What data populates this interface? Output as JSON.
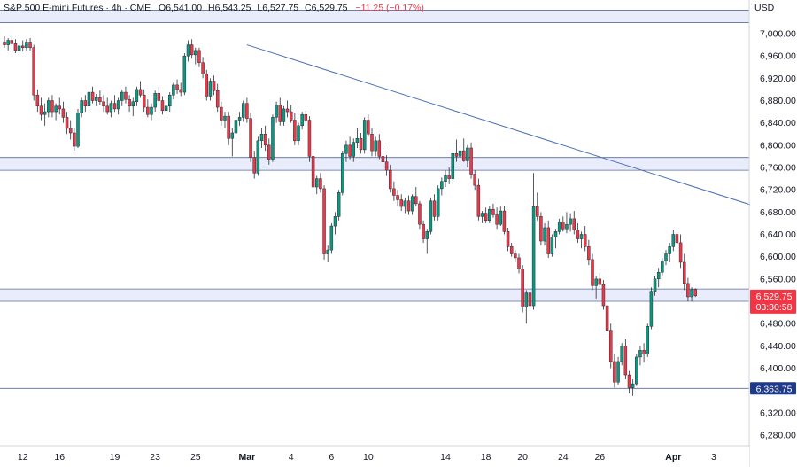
{
  "header": {
    "symbol": "S&P 500 E-mini Futures · 4h · CME",
    "open_label": "O",
    "open": "6,541.00",
    "high_label": "H",
    "high": "6,543.25",
    "low_label": "L",
    "low": "6,527.75",
    "close_label": "C",
    "close": "6,529.75",
    "change": "−11.25 (−0.17%)",
    "currency": "USD"
  },
  "colors": {
    "up": "#089981",
    "down": "#f23645",
    "band_fill": "#e8ecfb",
    "band_line": "#5b6aa0",
    "trendline": "#4a6fb5",
    "price_badge": "#f23645",
    "level_badge": "#1e3a8a"
  },
  "chart_data": {
    "type": "candlestick",
    "ylim": [
      6260,
      7020
    ],
    "y_ticks": [
      "7,000.00",
      "6,960.00",
      "6,920.00",
      "6,880.00",
      "6,840.00",
      "6,800.00",
      "6,760.00",
      "6,720.00",
      "6,680.00",
      "6,640.00",
      "6,600.00",
      "6,560.00",
      "6,520.00",
      "6,480.00",
      "6,440.00",
      "6,400.00",
      "6,360.00",
      "6,320.00",
      "6,280.00"
    ],
    "y_tick_values": [
      7000,
      6960,
      6920,
      6880,
      6840,
      6800,
      6760,
      6720,
      6680,
      6640,
      6600,
      6560,
      6520,
      6480,
      6440,
      6400,
      6360,
      6320,
      6280
    ],
    "x_labels": [
      "12",
      "16",
      "19",
      "23",
      "25",
      "Mar",
      "4",
      "6",
      "10",
      "14",
      "18",
      "20",
      "24",
      "26",
      "Apr",
      "3"
    ],
    "x_label_bars": [
      5,
      15,
      30,
      41,
      52,
      66,
      78,
      89,
      99,
      120,
      131,
      141,
      152,
      162,
      182,
      193
    ],
    "bold_x_labels": [
      "Mar",
      "Apr"
    ],
    "bars": [
      [
        6985,
        6995,
        6975,
        6980
      ],
      [
        6980,
        6992,
        6970,
        6988
      ],
      [
        6988,
        6996,
        6978,
        6982
      ],
      [
        6982,
        6990,
        6965,
        6970
      ],
      [
        6970,
        6985,
        6960,
        6978
      ],
      [
        6978,
        6988,
        6968,
        6975
      ],
      [
        6975,
        6990,
        6970,
        6985
      ],
      [
        6985,
        6992,
        6970,
        6975
      ],
      [
        6975,
        6980,
        6880,
        6890
      ],
      [
        6890,
        6900,
        6860,
        6870
      ],
      [
        6870,
        6885,
        6845,
        6855
      ],
      [
        6855,
        6875,
        6835,
        6860
      ],
      [
        6860,
        6885,
        6850,
        6880
      ],
      [
        6880,
        6890,
        6850,
        6860
      ],
      [
        6860,
        6875,
        6845,
        6870
      ],
      [
        6870,
        6885,
        6855,
        6865
      ],
      [
        6865,
        6878,
        6840,
        6850
      ],
      [
        6850,
        6860,
        6820,
        6830
      ],
      [
        6830,
        6845,
        6810,
        6822
      ],
      [
        6822,
        6830,
        6790,
        6798
      ],
      [
        6798,
        6865,
        6795,
        6858
      ],
      [
        6858,
        6885,
        6850,
        6880
      ],
      [
        6880,
        6890,
        6860,
        6870
      ],
      [
        6870,
        6900,
        6862,
        6895
      ],
      [
        6895,
        6905,
        6875,
        6880
      ],
      [
        6880,
        6892,
        6870,
        6885
      ],
      [
        6885,
        6898,
        6872,
        6878
      ],
      [
        6878,
        6890,
        6860,
        6870
      ],
      [
        6870,
        6885,
        6855,
        6860
      ],
      [
        6860,
        6880,
        6850,
        6875
      ],
      [
        6875,
        6890,
        6860,
        6865
      ],
      [
        6865,
        6885,
        6855,
        6880
      ],
      [
        6880,
        6900,
        6870,
        6895
      ],
      [
        6895,
        6905,
        6875,
        6882
      ],
      [
        6882,
        6890,
        6860,
        6870
      ],
      [
        6870,
        6885,
        6852,
        6878
      ],
      [
        6878,
        6905,
        6870,
        6900
      ],
      [
        6900,
        6915,
        6885,
        6890
      ],
      [
        6890,
        6900,
        6860,
        6868
      ],
      [
        6868,
        6882,
        6850,
        6855
      ],
      [
        6855,
        6875,
        6845,
        6868
      ],
      [
        6868,
        6898,
        6860,
        6893
      ],
      [
        6893,
        6905,
        6875,
        6880
      ],
      [
        6880,
        6888,
        6855,
        6862
      ],
      [
        6862,
        6875,
        6848,
        6870
      ],
      [
        6870,
        6895,
        6860,
        6890
      ],
      [
        6890,
        6912,
        6882,
        6908
      ],
      [
        6908,
        6918,
        6892,
        6900
      ],
      [
        6900,
        6912,
        6888,
        6895
      ],
      [
        6895,
        6965,
        6890,
        6960
      ],
      [
        6960,
        6988,
        6950,
        6980
      ],
      [
        6980,
        6990,
        6955,
        6962
      ],
      [
        6962,
        6975,
        6945,
        6970
      ],
      [
        6970,
        6975,
        6940,
        6948
      ],
      [
        6948,
        6958,
        6920,
        6928
      ],
      [
        6928,
        6935,
        6880,
        6888
      ],
      [
        6888,
        6920,
        6880,
        6915
      ],
      [
        6915,
        6925,
        6890,
        6898
      ],
      [
        6898,
        6910,
        6860,
        6868
      ],
      [
        6868,
        6878,
        6835,
        6845
      ],
      [
        6845,
        6860,
        6830,
        6852
      ],
      [
        6852,
        6860,
        6800,
        6812
      ],
      [
        6812,
        6830,
        6780,
        6822
      ],
      [
        6822,
        6850,
        6810,
        6845
      ],
      [
        6845,
        6860,
        6835,
        6850
      ],
      [
        6850,
        6880,
        6842,
        6875
      ],
      [
        6875,
        6885,
        6840,
        6848
      ],
      [
        6848,
        6858,
        6770,
        6778
      ],
      [
        6778,
        6790,
        6740,
        6750
      ],
      [
        6750,
        6815,
        6745,
        6808
      ],
      [
        6808,
        6830,
        6795,
        6820
      ],
      [
        6820,
        6835,
        6790,
        6800
      ],
      [
        6800,
        6812,
        6765,
        6775
      ],
      [
        6775,
        6855,
        6770,
        6850
      ],
      [
        6850,
        6878,
        6840,
        6872
      ],
      [
        6872,
        6885,
        6835,
        6842
      ],
      [
        6842,
        6870,
        6835,
        6865
      ],
      [
        6865,
        6880,
        6850,
        6860
      ],
      [
        6860,
        6872,
        6840,
        6845
      ],
      [
        6845,
        6858,
        6800,
        6808
      ],
      [
        6808,
        6840,
        6800,
        6835
      ],
      [
        6835,
        6860,
        6828,
        6855
      ],
      [
        6855,
        6862,
        6840,
        6845
      ],
      [
        6845,
        6852,
        6770,
        6780
      ],
      [
        6780,
        6790,
        6715,
        6725
      ],
      [
        6725,
        6745,
        6712,
        6740
      ],
      [
        6740,
        6750,
        6715,
        6722
      ],
      [
        6722,
        6728,
        6595,
        6605
      ],
      [
        6605,
        6620,
        6590,
        6612
      ],
      [
        6612,
        6660,
        6605,
        6655
      ],
      [
        6655,
        6680,
        6640,
        6672
      ],
      [
        6672,
        6720,
        6665,
        6715
      ],
      [
        6715,
        6790,
        6710,
        6785
      ],
      [
        6785,
        6808,
        6770,
        6800
      ],
      [
        6800,
        6815,
        6775,
        6780
      ],
      [
        6780,
        6812,
        6770,
        6805
      ],
      [
        6805,
        6830,
        6795,
        6812
      ],
      [
        6812,
        6822,
        6785,
        6792
      ],
      [
        6792,
        6850,
        6785,
        6845
      ],
      [
        6845,
        6855,
        6815,
        6820
      ],
      [
        6820,
        6830,
        6780,
        6790
      ],
      [
        6790,
        6815,
        6780,
        6808
      ],
      [
        6808,
        6820,
        6775,
        6780
      ],
      [
        6780,
        6795,
        6762,
        6770
      ],
      [
        6770,
        6782,
        6745,
        6755
      ],
      [
        6755,
        6765,
        6715,
        6722
      ],
      [
        6722,
        6735,
        6700,
        6710
      ],
      [
        6710,
        6720,
        6690,
        6702
      ],
      [
        6702,
        6712,
        6682,
        6690
      ],
      [
        6690,
        6705,
        6678,
        6700
      ],
      [
        6700,
        6710,
        6675,
        6682
      ],
      [
        6682,
        6712,
        6675,
        6708
      ],
      [
        6708,
        6725,
        6690,
        6695
      ],
      [
        6695,
        6700,
        6650,
        6658
      ],
      [
        6658,
        6665,
        6625,
        6632
      ],
      [
        6632,
        6650,
        6605,
        6645
      ],
      [
        6645,
        6705,
        6640,
        6700
      ],
      [
        6700,
        6712,
        6665,
        6672
      ],
      [
        6672,
        6728,
        6665,
        6722
      ],
      [
        6722,
        6742,
        6710,
        6735
      ],
      [
        6735,
        6755,
        6725,
        6745
      ],
      [
        6745,
        6760,
        6730,
        6740
      ],
      [
        6740,
        6790,
        6735,
        6785
      ],
      [
        6785,
        6810,
        6770,
        6780
      ],
      [
        6780,
        6798,
        6765,
        6790
      ],
      [
        6790,
        6812,
        6770,
        6772
      ],
      [
        6772,
        6800,
        6760,
        6795
      ],
      [
        6795,
        6805,
        6740,
        6748
      ],
      [
        6748,
        6755,
        6720,
        6728
      ],
      [
        6728,
        6740,
        6665,
        6672
      ],
      [
        6672,
        6682,
        6660,
        6678
      ],
      [
        6678,
        6688,
        6660,
        6665
      ],
      [
        6665,
        6690,
        6660,
        6685
      ],
      [
        6685,
        6695,
        6670,
        6675
      ],
      [
        6675,
        6688,
        6650,
        6658
      ],
      [
        6658,
        6690,
        6655,
        6682
      ],
      [
        6682,
        6690,
        6640,
        6645
      ],
      [
        6645,
        6652,
        6610,
        6618
      ],
      [
        6618,
        6625,
        6600,
        6605
      ],
      [
        6605,
        6612,
        6590,
        6598
      ],
      [
        6598,
        6605,
        6570,
        6578
      ],
      [
        6578,
        6585,
        6500,
        6510
      ],
      [
        6510,
        6540,
        6480,
        6535
      ],
      [
        6535,
        6548,
        6505,
        6512
      ],
      [
        6512,
        6750,
        6505,
        6690
      ],
      [
        6690,
        6715,
        6665,
        6672
      ],
      [
        6672,
        6680,
        6620,
        6628
      ],
      [
        6628,
        6660,
        6620,
        6652
      ],
      [
        6652,
        6665,
        6598,
        6605
      ],
      [
        6605,
        6640,
        6600,
        6635
      ],
      [
        6635,
        6650,
        6615,
        6645
      ],
      [
        6645,
        6668,
        6640,
        6662
      ],
      [
        6662,
        6672,
        6645,
        6650
      ],
      [
        6650,
        6680,
        6642,
        6658
      ],
      [
        6658,
        6678,
        6645,
        6668
      ],
      [
        6668,
        6682,
        6640,
        6648
      ],
      [
        6648,
        6660,
        6625,
        6632
      ],
      [
        6632,
        6645,
        6615,
        6640
      ],
      [
        6640,
        6655,
        6610,
        6618
      ],
      [
        6618,
        6630,
        6585,
        6595
      ],
      [
        6595,
        6605,
        6540,
        6548
      ],
      [
        6548,
        6565,
        6525,
        6560
      ],
      [
        6560,
        6572,
        6545,
        6550
      ],
      [
        6550,
        6558,
        6505,
        6512
      ],
      [
        6512,
        6525,
        6460,
        6468
      ],
      [
        6468,
        6480,
        6400,
        6412
      ],
      [
        6412,
        6425,
        6365,
        6375
      ],
      [
        6375,
        6420,
        6370,
        6412
      ],
      [
        6412,
        6445,
        6405,
        6440
      ],
      [
        6440,
        6452,
        6380,
        6388
      ],
      [
        6388,
        6395,
        6355,
        6365
      ],
      [
        6365,
        6380,
        6350,
        6372
      ],
      [
        6372,
        6425,
        6368,
        6420
      ],
      [
        6420,
        6440,
        6405,
        6432
      ],
      [
        6432,
        6445,
        6410,
        6425
      ],
      [
        6425,
        6480,
        6420,
        6475
      ],
      [
        6475,
        6545,
        6470,
        6538
      ],
      [
        6538,
        6565,
        6530,
        6560
      ],
      [
        6560,
        6580,
        6545,
        6572
      ],
      [
        6572,
        6598,
        6565,
        6592
      ],
      [
        6592,
        6612,
        6585,
        6605
      ],
      [
        6605,
        6625,
        6590,
        6618
      ],
      [
        6618,
        6648,
        6610,
        6640
      ],
      [
        6640,
        6652,
        6615,
        6625
      ],
      [
        6625,
        6640,
        6580,
        6590
      ],
      [
        6590,
        6605,
        6540,
        6552
      ],
      [
        6552,
        6562,
        6520,
        6528
      ],
      [
        6528,
        6545,
        6520,
        6541
      ],
      [
        6541,
        6543.25,
        6527.75,
        6529.75
      ]
    ],
    "bands": [
      {
        "y1": 7020,
        "y2": 7042
      },
      {
        "y1": 6755,
        "y2": 6778
      },
      {
        "y1": 6520,
        "y2": 6542
      }
    ],
    "horizontal_line": 6363.75,
    "trendline": [
      [
        66,
        6980
      ],
      [
        226,
        6645
      ]
    ],
    "price_labels": [
      {
        "value": "6,529.75",
        "y": 6529.75
      },
      {
        "value": "03:30:58",
        "y": 6507
      }
    ],
    "level_label": {
      "value": "6,363.75",
      "y": 6363.75
    }
  }
}
